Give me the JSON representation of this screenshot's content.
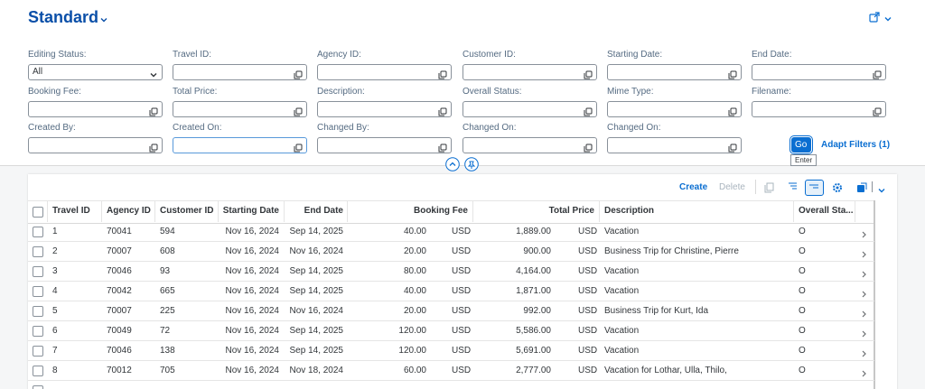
{
  "header": {
    "title": "Standard"
  },
  "filters": [
    {
      "label": "Editing Status:",
      "value": "All"
    },
    {
      "label": "Travel ID:"
    },
    {
      "label": "Agency ID:"
    },
    {
      "label": "Customer ID:"
    },
    {
      "label": "Starting Date:"
    },
    {
      "label": "End Date:"
    },
    {
      "label": "Booking Fee:"
    },
    {
      "label": "Total Price:"
    },
    {
      "label": "Description:"
    },
    {
      "label": "Overall Status:"
    },
    {
      "label": "Mime Type:"
    },
    {
      "label": "Filename:"
    },
    {
      "label": "Created By:"
    },
    {
      "label": "Created On:"
    },
    {
      "label": "Changed By:"
    },
    {
      "label": "Changed On:"
    },
    {
      "label": "Changed On:"
    }
  ],
  "buttons": {
    "go": "Go",
    "go_tooltip": "Enter",
    "adapt": "Adapt Filters (1)"
  },
  "toolbar": {
    "create": "Create",
    "delete": "Delete"
  },
  "table": {
    "columns": [
      "Travel ID",
      "Agency ID",
      "Customer ID",
      "Starting Date",
      "End Date",
      "Booking Fee",
      "Total Price",
      "Description",
      "Overall Sta..."
    ],
    "rows": [
      [
        "1",
        "70041",
        "594",
        "Nov 16, 2024",
        "Sep 14, 2025",
        "40.00",
        "USD",
        "1,889.00",
        "USD",
        "Vacation",
        "O"
      ],
      [
        "2",
        "70007",
        "608",
        "Nov 16, 2024",
        "Nov 16, 2024",
        "20.00",
        "USD",
        "900.00",
        "USD",
        "Business Trip for Christine, Pierre",
        "O"
      ],
      [
        "3",
        "70046",
        "93",
        "Nov 16, 2024",
        "Sep 14, 2025",
        "80.00",
        "USD",
        "4,164.00",
        "USD",
        "Vacation",
        "O"
      ],
      [
        "4",
        "70042",
        "665",
        "Nov 16, 2024",
        "Sep 14, 2025",
        "40.00",
        "USD",
        "1,871.00",
        "USD",
        "Vacation",
        "O"
      ],
      [
        "5",
        "70007",
        "225",
        "Nov 16, 2024",
        "Nov 16, 2024",
        "20.00",
        "USD",
        "992.00",
        "USD",
        "Business Trip for Kurt, Ida",
        "O"
      ],
      [
        "6",
        "70049",
        "72",
        "Nov 16, 2024",
        "Sep 14, 2025",
        "120.00",
        "USD",
        "5,586.00",
        "USD",
        "Vacation",
        "O"
      ],
      [
        "7",
        "70046",
        "138",
        "Nov 16, 2024",
        "Sep 14, 2025",
        "120.00",
        "USD",
        "5,691.00",
        "USD",
        "Vacation",
        "O"
      ],
      [
        "8",
        "70012",
        "705",
        "Nov 16, 2024",
        "Nov 18, 2024",
        "60.00",
        "USD",
        "2,777.00",
        "USD",
        "Vacation for Lothar, Ulla, Thilo,",
        "O"
      ]
    ]
  }
}
